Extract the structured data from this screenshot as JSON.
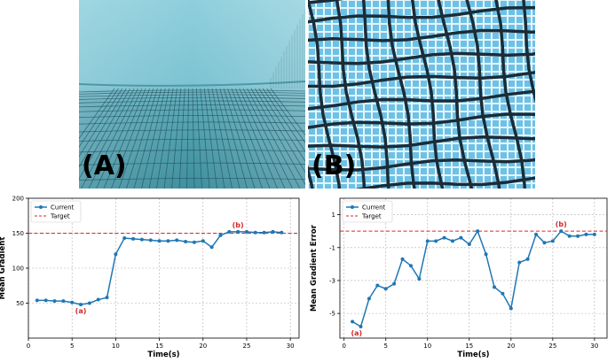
{
  "panels": {
    "A": {
      "label": "(A)"
    },
    "B": {
      "label": "(B)"
    }
  },
  "colors": {
    "series": "#1f77b4",
    "target": "#d62728",
    "annotation": "#d62728",
    "water_light": "#8fd0dc",
    "water_dark": "#4da3b4",
    "grid": "#1a2c38",
    "tile": "#63c1ea"
  },
  "chart_data": [
    {
      "type": "line",
      "ylabel": "Mean Gradient",
      "xlabel": "Time(s)",
      "xlim": [
        0,
        31
      ],
      "ylim": [
        0,
        200
      ],
      "xticks": [
        0,
        5,
        10,
        15,
        20,
        25,
        30
      ],
      "yticks": [
        50,
        100,
        150,
        200
      ],
      "grid": true,
      "legend_position": "top-left",
      "series": [
        {
          "name": "Current",
          "x": [
            1,
            2,
            3,
            4,
            5,
            6,
            7,
            8,
            9,
            10,
            11,
            12,
            13,
            14,
            15,
            16,
            17,
            18,
            19,
            20,
            21,
            22,
            23,
            24,
            25,
            26,
            27,
            28,
            29
          ],
          "y": [
            54,
            54,
            53,
            53,
            51,
            48,
            50,
            55,
            58,
            120,
            143,
            142,
            141,
            140,
            139,
            139,
            140,
            138,
            137,
            139,
            130,
            147,
            152,
            152,
            152,
            151,
            151,
            152,
            151
          ]
        }
      ],
      "target": {
        "name": "Target",
        "value": 150
      },
      "annotations": [
        {
          "text": "(a)",
          "x": 6,
          "y": 48
        },
        {
          "text": "(b)",
          "x": 24,
          "y": 152
        }
      ]
    },
    {
      "type": "line",
      "ylabel": "Mean Gradient Error",
      "xlabel": "Time(s)",
      "xlim": [
        -0.5,
        31.5
      ],
      "ylim": [
        -6.5,
        2
      ],
      "xticks": [
        0,
        5,
        10,
        15,
        20,
        25,
        30
      ],
      "yticks": [
        1,
        -1,
        -3,
        -5
      ],
      "grid": true,
      "legend_position": "top-left",
      "series": [
        {
          "name": "Current",
          "x": [
            1,
            2,
            3,
            4,
            5,
            6,
            7,
            8,
            9,
            10,
            11,
            12,
            13,
            14,
            15,
            16,
            17,
            18,
            19,
            20,
            21,
            22,
            23,
            24,
            25,
            26,
            27,
            28,
            29,
            30
          ],
          "y": [
            -5.5,
            -5.8,
            -4.1,
            -3.3,
            -3.5,
            -3.2,
            -1.7,
            -2.1,
            -2.9,
            -0.6,
            -0.6,
            -0.4,
            -0.6,
            -0.4,
            -0.8,
            0.0,
            -1.4,
            -3.4,
            -3.8,
            -4.7,
            -1.9,
            -1.7,
            -0.2,
            -0.7,
            -0.6,
            0.0,
            -0.3,
            -0.3,
            -0.2,
            -0.2
          ]
        }
      ],
      "target": {
        "name": "Target",
        "value": 0
      },
      "annotations": [
        {
          "text": "(a)",
          "x": 1.5,
          "y": -5.8
        },
        {
          "text": "(b)",
          "x": 26,
          "y": 0
        }
      ]
    }
  ]
}
